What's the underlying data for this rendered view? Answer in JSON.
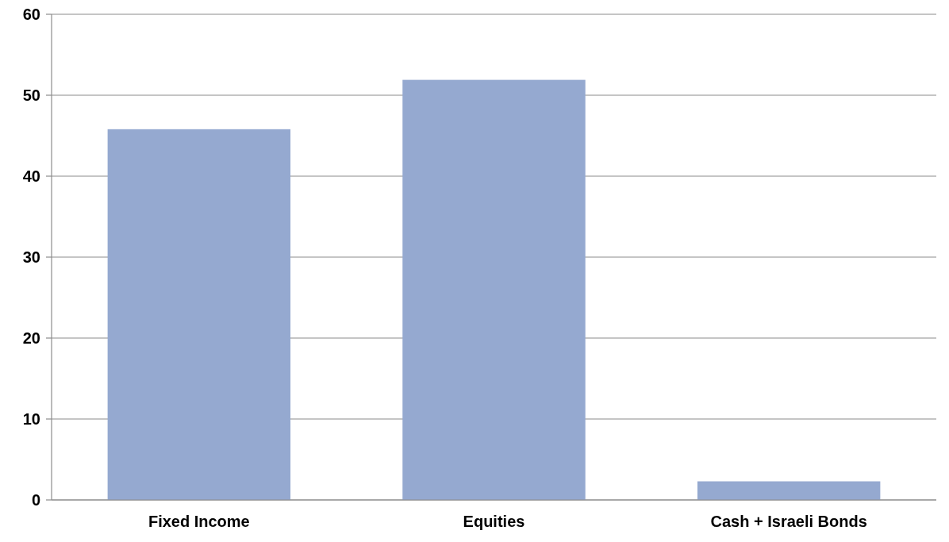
{
  "chart_data": {
    "type": "bar",
    "categories": [
      "Fixed Income",
      "Equities",
      "Cash + Israeli Bonds"
    ],
    "values": [
      45.8,
      51.9,
      2.3
    ],
    "color": "#95a9d0",
    "ylim": [
      0,
      60
    ],
    "yticks": [
      0,
      10,
      20,
      30,
      40,
      50,
      60
    ],
    "grid": "y"
  }
}
